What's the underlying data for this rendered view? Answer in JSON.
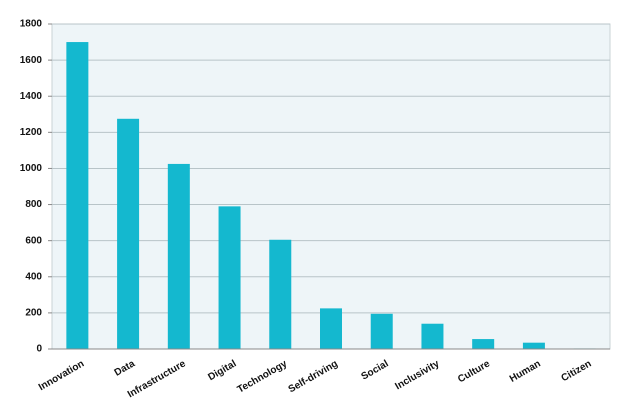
{
  "chart_data": {
    "type": "bar",
    "categories": [
      "Innovation",
      "Data",
      "Infrastructure",
      "Digital",
      "Technology",
      "Self-driving",
      "Social",
      "Inclusivity",
      "Culture",
      "Human",
      "Citizen"
    ],
    "values": [
      1700,
      1275,
      1025,
      790,
      605,
      225,
      195,
      140,
      55,
      35,
      3
    ],
    "color": "#14b8cf",
    "ylim": [
      0,
      1800
    ],
    "yticks": [
      0,
      200,
      400,
      600,
      800,
      1000,
      1200,
      1400,
      1600,
      1800
    ],
    "grid": true
  }
}
